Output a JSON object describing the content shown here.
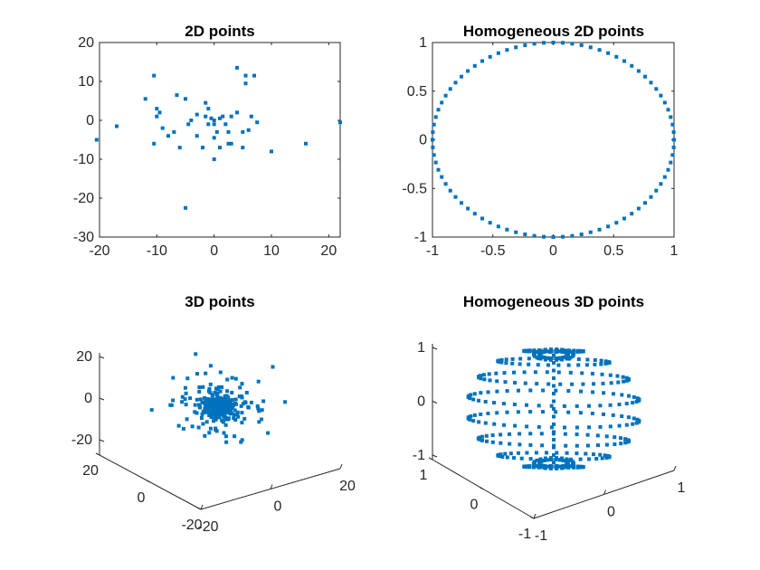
{
  "figure": {
    "background": "#ffffff",
    "marker_color": "#0072BD",
    "axis_color": "#262626"
  },
  "chart_data": [
    {
      "type": "scatter",
      "title": "2D points",
      "xlim": [
        -20,
        22
      ],
      "ylim": [
        -30,
        20
      ],
      "xticks": [
        "-20",
        "-10",
        "0",
        "10",
        "20"
      ],
      "xtick_values": [
        -20,
        -10,
        0,
        10,
        20
      ],
      "yticks": [
        "20",
        "10",
        "0",
        "-10",
        "-20",
        "-30"
      ],
      "ytick_values": [
        20,
        10,
        0,
        -10,
        -20,
        -30
      ],
      "grid": false,
      "points": [
        [
          -20.5,
          -5
        ],
        [
          -17,
          -1.5
        ],
        [
          -12,
          5.5
        ],
        [
          -10.5,
          11.5
        ],
        [
          -10,
          3
        ],
        [
          -10,
          1
        ],
        [
          -9.5,
          2
        ],
        [
          -9,
          -2
        ],
        [
          -10.5,
          -6
        ],
        [
          -8,
          -4
        ],
        [
          -7,
          -3
        ],
        [
          -6.5,
          6.5
        ],
        [
          -6,
          -7
        ],
        [
          -5,
          5.5
        ],
        [
          -5,
          -22.5
        ],
        [
          -4.5,
          -1
        ],
        [
          -4,
          0
        ],
        [
          -3,
          -4
        ],
        [
          -3,
          1.5
        ],
        [
          -2,
          -7
        ],
        [
          -1.5,
          4.5
        ],
        [
          -1.5,
          1
        ],
        [
          -1,
          3
        ],
        [
          -1,
          -1
        ],
        [
          -0.5,
          0.5
        ],
        [
          0,
          0
        ],
        [
          0,
          -1
        ],
        [
          0,
          -4.5
        ],
        [
          0,
          -10
        ],
        [
          0.5,
          -3
        ],
        [
          1,
          -7
        ],
        [
          1,
          0.5
        ],
        [
          1.5,
          1
        ],
        [
          2,
          -1
        ],
        [
          2.5,
          -3
        ],
        [
          2.5,
          -6
        ],
        [
          3,
          -6
        ],
        [
          3,
          1
        ],
        [
          4,
          2
        ],
        [
          4,
          13.5
        ],
        [
          5,
          -3
        ],
        [
          5,
          -7
        ],
        [
          5.5,
          9.5
        ],
        [
          5.5,
          11.5
        ],
        [
          6,
          -2.5
        ],
        [
          6.5,
          1
        ],
        [
          7,
          11.5
        ],
        [
          7.5,
          -0.5
        ],
        [
          10,
          -8
        ],
        [
          16,
          -6
        ],
        [
          22,
          -0.5
        ]
      ]
    },
    {
      "type": "scatter",
      "title": "Homogeneous 2D points",
      "xlim": [
        -1,
        1
      ],
      "ylim": [
        -1,
        1
      ],
      "xticks": [
        "-1",
        "-0.5",
        "0",
        "0.5",
        "1"
      ],
      "xtick_values": [
        -1,
        -0.5,
        0,
        0.5,
        1
      ],
      "yticks": [
        "1",
        "0.5",
        "0",
        "-0.5",
        "-1"
      ],
      "ytick_values": [
        1,
        0.5,
        0,
        -0.5,
        -1
      ],
      "grid": false,
      "shape": "unit circle",
      "n_points": 80
    },
    {
      "type": "scatter",
      "title": "3D points",
      "projection": "3d",
      "xlim": [
        -20,
        20
      ],
      "ylim": [
        -20,
        20
      ],
      "zlim": [
        -20,
        20
      ],
      "x_axis_ticks": [
        "-20",
        "0",
        "20"
      ],
      "y_axis_ticks": [
        "20",
        "0",
        "-20"
      ],
      "z_axis_ticks": [
        "20",
        "0",
        "-20"
      ],
      "grid": false,
      "n_points": 360,
      "distribution": "dense cluster at origin with scattered outliers"
    },
    {
      "type": "scatter",
      "title": "Homogeneous 3D points",
      "projection": "3d",
      "xlim": [
        -1,
        1
      ],
      "ylim": [
        -1,
        1
      ],
      "zlim": [
        -1,
        1
      ],
      "x_axis_ticks": [
        "-1",
        "0",
        "1"
      ],
      "y_axis_ticks": [
        "1",
        "0",
        "-1"
      ],
      "z_axis_ticks": [
        "1",
        "0",
        "-1"
      ],
      "grid": false,
      "shape": "unit sphere"
    }
  ]
}
